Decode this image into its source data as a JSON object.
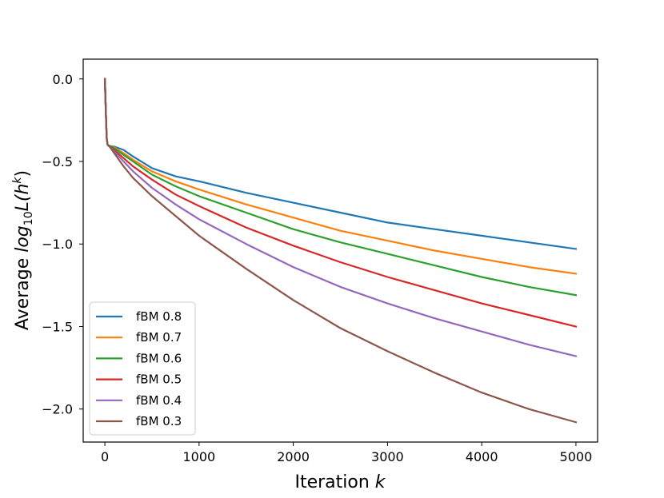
{
  "chart_data": {
    "type": "line",
    "xlabel": "Iteration k",
    "ylabel": "Average log10 L(h^k)",
    "xlim": [
      -230,
      5230
    ],
    "ylim": [
      -2.2,
      0.12
    ],
    "xticks": [
      0,
      1000,
      2000,
      3000,
      4000,
      5000
    ],
    "xtick_labels": [
      "0",
      "1000",
      "2000",
      "3000",
      "4000",
      "5000"
    ],
    "yticks": [
      0.0,
      -0.5,
      -1.0,
      -1.5,
      -2.0
    ],
    "ytick_labels": [
      "0.0",
      "−0.5",
      "−1.0",
      "−1.5",
      "−2.0"
    ],
    "grid": false,
    "legend_position": "lower-left",
    "x": [
      0,
      10,
      20,
      30,
      50,
      100,
      200,
      300,
      500,
      750,
      1000,
      1500,
      2000,
      2500,
      3000,
      3500,
      4000,
      4500,
      5000
    ],
    "series": [
      {
        "name": "fBM 0.8",
        "color": "#1f77b4",
        "values": [
          0.0,
          -0.2,
          -0.36,
          -0.4,
          -0.405,
          -0.41,
          -0.43,
          -0.47,
          -0.54,
          -0.59,
          -0.62,
          -0.69,
          -0.75,
          -0.81,
          -0.87,
          -0.91,
          -0.95,
          -0.99,
          -1.03
        ]
      },
      {
        "name": "fBM 0.7",
        "color": "#ff7f0e",
        "values": [
          0.0,
          -0.2,
          -0.36,
          -0.4,
          -0.405,
          -0.415,
          -0.45,
          -0.49,
          -0.56,
          -0.62,
          -0.67,
          -0.76,
          -0.84,
          -0.92,
          -0.98,
          -1.04,
          -1.09,
          -1.14,
          -1.18
        ]
      },
      {
        "name": "fBM 0.6",
        "color": "#2ca02c",
        "values": [
          0.0,
          -0.2,
          -0.36,
          -0.4,
          -0.405,
          -0.42,
          -0.46,
          -0.5,
          -0.58,
          -0.65,
          -0.71,
          -0.81,
          -0.91,
          -0.99,
          -1.06,
          -1.13,
          -1.2,
          -1.26,
          -1.31
        ]
      },
      {
        "name": "fBM 0.5",
        "color": "#d62728",
        "values": [
          0.0,
          -0.2,
          -0.36,
          -0.4,
          -0.41,
          -0.43,
          -0.48,
          -0.53,
          -0.61,
          -0.7,
          -0.77,
          -0.9,
          -1.01,
          -1.11,
          -1.2,
          -1.28,
          -1.36,
          -1.43,
          -1.5
        ]
      },
      {
        "name": "fBM 0.4",
        "color": "#9467bd",
        "values": [
          0.0,
          -0.2,
          -0.36,
          -0.4,
          -0.41,
          -0.44,
          -0.5,
          -0.56,
          -0.66,
          -0.76,
          -0.85,
          -1.0,
          -1.14,
          -1.26,
          -1.36,
          -1.45,
          -1.53,
          -1.61,
          -1.68
        ]
      },
      {
        "name": "fBM 0.3",
        "color": "#8c564b",
        "values": [
          0.0,
          -0.2,
          -0.36,
          -0.4,
          -0.41,
          -0.45,
          -0.53,
          -0.6,
          -0.71,
          -0.83,
          -0.95,
          -1.15,
          -1.34,
          -1.51,
          -1.65,
          -1.78,
          -1.9,
          -2.0,
          -2.08
        ]
      }
    ]
  }
}
